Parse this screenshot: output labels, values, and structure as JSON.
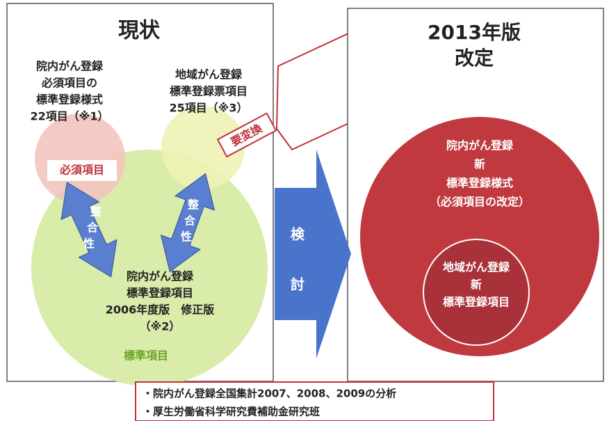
{
  "current": {
    "title": "現状",
    "hospital_required": [
      "院内がん登録",
      "必須項目の",
      "標準登録様式",
      "22項目（※1）"
    ],
    "regional_items": [
      "地域がん登録",
      "標準登録票項目",
      "25項目（※3）"
    ],
    "required_label": "必須項目",
    "consistency_left": [
      "整",
      "合",
      "性"
    ],
    "consistency_right": [
      "整",
      "合",
      "性"
    ],
    "hospital_standard": [
      "院内がん登録",
      "標準登録項目",
      "2006年度版　修正版",
      "（※2）"
    ],
    "standard_label": "標準項目",
    "conversion": "要変換"
  },
  "review": [
    "検",
    "討"
  ],
  "revision": {
    "title": [
      "2013年版",
      "改定"
    ],
    "hospital_new": [
      "院内がん登録",
      "新",
      "標準登録様式",
      "（必須項目の改定）"
    ],
    "regional_new": [
      "地域がん登録",
      "新",
      "標準登録項目"
    ]
  },
  "sources": [
    "・院内がん登録全国集計2007、2008、2009の分析",
    "・厚生労働省科学研究費補助金研究班"
  ]
}
